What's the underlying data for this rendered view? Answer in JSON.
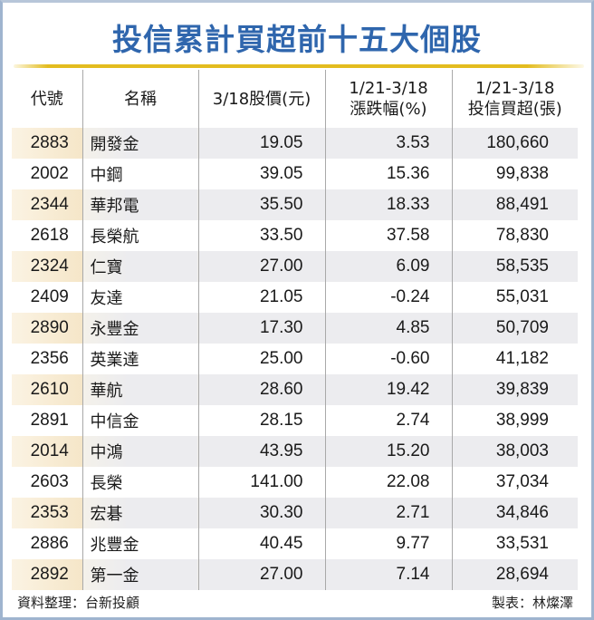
{
  "title": "投信累計買超前十五大個股",
  "table": {
    "headers": [
      {
        "line1": "代號",
        "line2": ""
      },
      {
        "line1": "名稱",
        "line2": ""
      },
      {
        "line1": "3/18股價(元)",
        "line2": ""
      },
      {
        "line1": "1/21-3/18",
        "line2": "漲跌幅(%)"
      },
      {
        "line1": "1/21-3/18",
        "line2": "投信買超(張)"
      }
    ],
    "rows": [
      {
        "code": "2883",
        "name": "開發金",
        "price": "19.05",
        "change": "3.53",
        "net_buy": "180,660"
      },
      {
        "code": "2002",
        "name": "中鋼",
        "price": "39.05",
        "change": "15.36",
        "net_buy": "99,838"
      },
      {
        "code": "2344",
        "name": "華邦電",
        "price": "35.50",
        "change": "18.33",
        "net_buy": "88,491"
      },
      {
        "code": "2618",
        "name": "長榮航",
        "price": "33.50",
        "change": "37.58",
        "net_buy": "78,830"
      },
      {
        "code": "2324",
        "name": "仁寶",
        "price": "27.00",
        "change": "6.09",
        "net_buy": "58,535"
      },
      {
        "code": "2409",
        "name": "友達",
        "price": "21.05",
        "change": "-0.24",
        "net_buy": "55,031"
      },
      {
        "code": "2890",
        "name": "永豐金",
        "price": "17.30",
        "change": "4.85",
        "net_buy": "50,709"
      },
      {
        "code": "2356",
        "name": "英業達",
        "price": "25.00",
        "change": "-0.60",
        "net_buy": "41,182"
      },
      {
        "code": "2610",
        "name": "華航",
        "price": "28.60",
        "change": "19.42",
        "net_buy": "39,839"
      },
      {
        "code": "2891",
        "name": "中信金",
        "price": "28.15",
        "change": "2.74",
        "net_buy": "38,999"
      },
      {
        "code": "2014",
        "name": "中鴻",
        "price": "43.95",
        "change": "15.20",
        "net_buy": "38,003"
      },
      {
        "code": "2603",
        "name": "長榮",
        "price": "141.00",
        "change": "22.08",
        "net_buy": "37,034"
      },
      {
        "code": "2353",
        "name": "宏碁",
        "price": "30.30",
        "change": "2.71",
        "net_buy": "34,846"
      },
      {
        "code": "2886",
        "name": "兆豐金",
        "price": "40.45",
        "change": "9.77",
        "net_buy": "33,531"
      },
      {
        "code": "2892",
        "name": "第一金",
        "price": "27.00",
        "change": "7.14",
        "net_buy": "28,694"
      }
    ]
  },
  "footer": {
    "source": "資料整理：台新投顧",
    "author": "製表：林燦澤"
  },
  "colors": {
    "title": "#2f66ad",
    "rule": "#e3bc1f",
    "frame": "#9fb4cf",
    "row_shade": "#ececef",
    "code_shade": "#f5e6c8"
  }
}
